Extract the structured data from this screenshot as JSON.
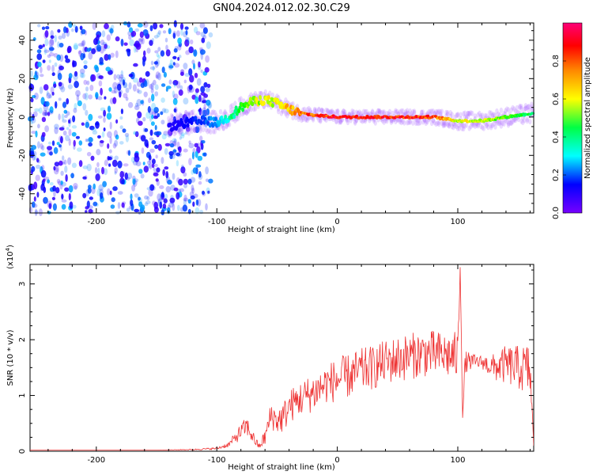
{
  "title": "GN04.2024.012.02.30.C29",
  "chart_data": [
    {
      "type": "heatmap",
      "xlabel": "Height of straight line (km)",
      "ylabel": "Frequency (Hz)",
      "xlim": [
        -255,
        163
      ],
      "ylim": [
        -50,
        49
      ],
      "x_ticks": [
        -200,
        -100,
        0,
        100
      ],
      "y_ticks": [
        -40,
        -20,
        0,
        20,
        40
      ],
      "colorbar": {
        "label": "Normalized spectral amplitude",
        "range": [
          0.0,
          1.0
        ],
        "ticks": [
          0.0,
          0.2,
          0.4,
          0.6,
          0.8
        ],
        "colormap": [
          "#7700ff",
          "#0000ff",
          "#00ffff",
          "#00ff00",
          "#ffff00",
          "#ff8800",
          "#ff0000",
          "#ff0077"
        ]
      },
      "ridge": {
        "description_free": true,
        "x": [
          -140,
          -125,
          -110,
          -100,
          -90,
          -80,
          -70,
          -60,
          -50,
          -40,
          -30,
          -20,
          0,
          20,
          40,
          60,
          80,
          100,
          120,
          140,
          163
        ],
        "freq": [
          -5,
          -3,
          -2,
          -3,
          0,
          5,
          8,
          9,
          7,
          4,
          2,
          1,
          0,
          0,
          0,
          0,
          0,
          -2,
          -2,
          0,
          2
        ],
        "amplitude": [
          0.1,
          0.15,
          0.2,
          0.25,
          0.35,
          0.45,
          0.55,
          0.6,
          0.6,
          0.7,
          0.8,
          0.85,
          0.95,
          0.95,
          0.9,
          0.9,
          0.85,
          0.6,
          0.6,
          0.5,
          0.4
        ]
      },
      "noise_region": {
        "x_start": -255,
        "x_end": -105,
        "amplitude_range": [
          0.05,
          0.25
        ]
      }
    },
    {
      "type": "line",
      "xlabel": "Height of straight line (km)",
      "ylabel": "SNR (10 * v/v)",
      "y_multiplier": "(x10",
      "y_multiplier_exp": "4",
      "y_multiplier_close": ")",
      "xlim": [
        -255,
        163
      ],
      "ylim": [
        0,
        3.35
      ],
      "x_ticks": [
        -200,
        -100,
        0,
        100
      ],
      "y_ticks": [
        0,
        1,
        2,
        3
      ],
      "series": [
        {
          "color": "#ee3333",
          "x": [
            -255,
            -200,
            -150,
            -120,
            -100,
            -90,
            -80,
            -75,
            -70,
            -65,
            -60,
            -55,
            -50,
            -45,
            -40,
            -30,
            -20,
            -10,
            0,
            10,
            20,
            30,
            40,
            50,
            60,
            70,
            80,
            90,
            100,
            102,
            104,
            106,
            108,
            110,
            120,
            130,
            140,
            150,
            160,
            163
          ],
          "values": [
            0.02,
            0.02,
            0.02,
            0.03,
            0.05,
            0.12,
            0.35,
            0.45,
            0.25,
            0.08,
            0.25,
            0.65,
            0.55,
            0.6,
            0.8,
            0.95,
            1.05,
            1.2,
            1.28,
            1.35,
            1.45,
            1.5,
            1.6,
            1.65,
            1.7,
            1.75,
            1.75,
            1.72,
            1.7,
            3.3,
            0.6,
            1.5,
            1.65,
            1.6,
            1.6,
            1.5,
            1.55,
            1.5,
            1.45,
            0.1
          ],
          "noise_amplitude": [
            0.0,
            0.0,
            0.0,
            0.01,
            0.02,
            0.05,
            0.15,
            0.18,
            0.12,
            0.05,
            0.15,
            0.25,
            0.25,
            0.28,
            0.3,
            0.32,
            0.35,
            0.35,
            0.4,
            0.4,
            0.4,
            0.4,
            0.4,
            0.42,
            0.42,
            0.42,
            0.42,
            0.42,
            0.45,
            0.0,
            0.0,
            0.3,
            0.15,
            0.15,
            0.12,
            0.25,
            0.35,
            0.4,
            0.5,
            0.0
          ]
        }
      ]
    }
  ]
}
